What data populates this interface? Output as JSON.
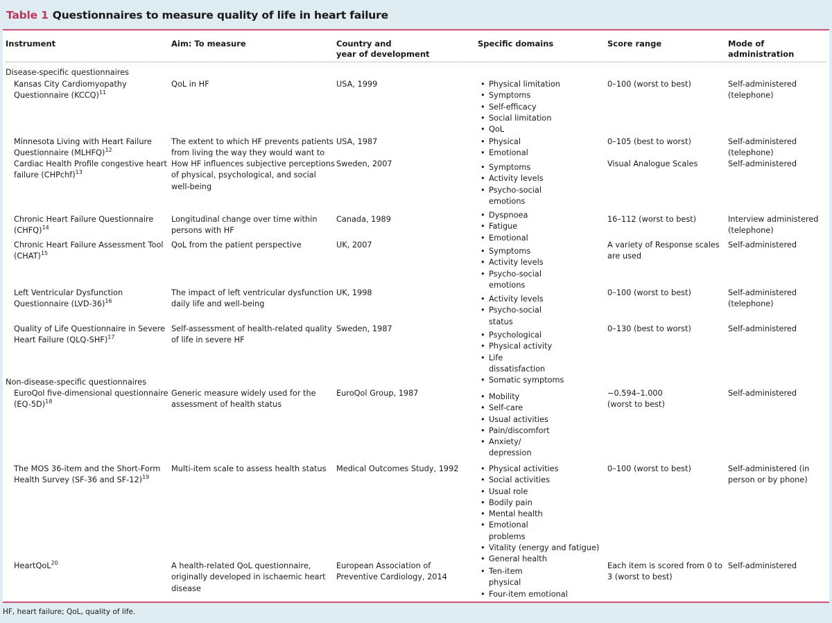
{
  "title": {
    "label": "Table 1",
    "text": "Questionnaires to measure quality of life in heart failure"
  },
  "headers": [
    "Instrument",
    "Aim: To measure",
    "Country and\nyear of development",
    "Specific domains",
    "Score range",
    "Mode of\nadministration"
  ],
  "groups": [
    "Disease-specific questionnaires",
    "Non-disease-specific questionnaires"
  ],
  "rows": [
    {
      "instrument": "Kansas City Cardiomyopathy\nQuestionnaire (KCCQ)",
      "ref": "11",
      "aim": "QoL in HF",
      "country": "USA, 1999",
      "domains": [
        "Physical limitation",
        "Symptoms",
        "Self-efficacy",
        "Social limitation",
        "QoL"
      ],
      "score": "0–100 (worst to best)",
      "mode": "Self-administered\n(telephone)"
    },
    {
      "instrument": "Minnesota Living with Heart Failure\nQuestionnaire (MLHFQ)",
      "ref": "12",
      "aim": "The extent to which HF prevents patients\nfrom living the way they would want to",
      "country": "USA, 1987",
      "domains": [
        "Physical",
        "Emotional"
      ],
      "score": "0–105 (best to worst)",
      "mode": "Self-administered\n(telephone)"
    },
    {
      "instrument": "Cardiac Health Profile congestive heart\nfailure (CHPchf)",
      "ref": "13",
      "aim": "How HF influences subjective perceptions\nof physical, psychological, and social\nwell-being",
      "country": "Sweden, 2007",
      "domains": [
        "Symptoms",
        "Activity levels",
        "Psycho-social\nemotions"
      ],
      "score": "Visual Analogue Scales",
      "mode": "Self-administered"
    },
    {
      "instrument": "Chronic Heart Failure Questionnaire\n(CHFQ)",
      "ref": "14",
      "aim": "Longitudinal change over time within\npersons with HF",
      "country": "Canada, 1989",
      "domains": [
        "Dyspnoea",
        "Fatigue",
        "Emotional"
      ],
      "score": "16–112 (worst to best)",
      "mode": "Interview administered\n(telephone)"
    },
    {
      "instrument": "Chronic Heart Failure Assessment Tool\n(CHAT)",
      "ref": "15",
      "aim": "QoL from the patient perspective",
      "country": "UK, 2007",
      "domains": [
        "Symptoms",
        "Activity levels",
        "Psycho-social\nemotions"
      ],
      "score": "A variety of Response scales\nare used",
      "mode": "Self-administered"
    },
    {
      "instrument": "Left Ventricular Dysfunction\nQuestionnaire (LVD-36)",
      "ref": "16",
      "aim": "The impact of left ventricular dysfunction\ndaily life and well-being",
      "country": "UK, 1998",
      "domains": [
        "Activity levels",
        "Psycho-social\nstatus"
      ],
      "score": "0–100 (worst to best)",
      "mode": "Self-administered\n(telephone)"
    },
    {
      "instrument": "Quality of Life Questionnaire in Severe\nHeart Failure (QLQ-SHF)",
      "ref": "17",
      "aim": "Self-assessment of health-related quality\nof life in severe HF",
      "country": "Sweden, 1987",
      "domains": [
        "Psychological",
        "Physical activity",
        "Life\ndissatisfaction",
        "Somatic symptoms"
      ],
      "score": "0–130 (best to worst)",
      "mode": "Self-administered"
    },
    {
      "instrument": "EuroQol five-dimensional questionnaire\n(EQ-5D)",
      "ref": "18",
      "aim": "Generic measure widely used for the\nassessment of health status",
      "country": "EuroQol Group, 1987",
      "domains": [
        "Mobility",
        "Self-care",
        "Usual activities",
        "Pain/discomfort",
        "Anxiety/\ndepression"
      ],
      "score": "−0.594–1.000\n(worst to best)",
      "mode": "Self-administered"
    },
    {
      "instrument": "The MOS 36-item and the Short-Form\nHealth Survey (SF-36 and SF-12)",
      "ref": "19",
      "aim": "Multi-item scale to assess health status",
      "country": "Medical Outcomes Study, 1992",
      "domains": [
        "Physical activities",
        "Social activities",
        "Usual role",
        "Bodily pain",
        "Mental health",
        "Emotional\nproblems",
        "Vitality (energy and fatigue)",
        "General health"
      ],
      "score": "0–100 (worst to best)",
      "mode": "Self-administered (in\nperson or by phone)"
    },
    {
      "instrument": "HeartQoL",
      "ref": "20",
      "aim": "A health-related QoL questionnaire,\noriginally developed in ischaemic heart\ndisease",
      "country": "European Association of\nPreventive Cardiology, 2014",
      "domains": [
        "Ten-item\nphysical",
        "Four-item emotional"
      ],
      "score": "Each item is scored from 0 to\n3 (worst to best)",
      "mode": "Self-administered"
    }
  ],
  "footnote": "HF, heart failure; QoL, quality of life."
}
